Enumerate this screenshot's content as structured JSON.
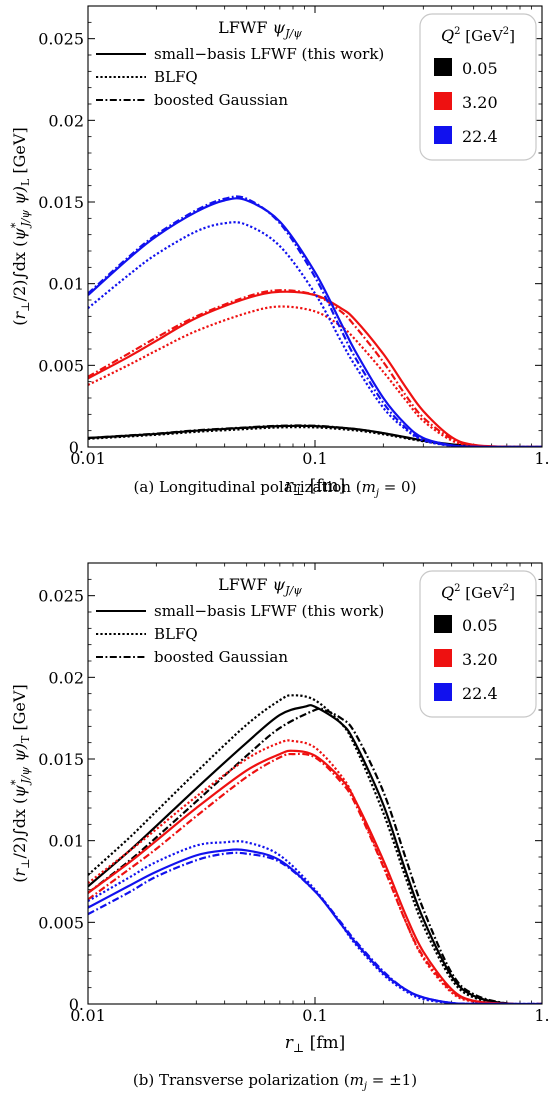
{
  "chart_data": [
    {
      "type": "line",
      "caption": "(a) Longitudinal polarization (m_j = 0)",
      "caption_parts": [
        "(a)  Longitudinal polarization (",
        "m",
        "j",
        " = 0)"
      ],
      "xlabel": "r⊥ [fm]",
      "ylabel": "(r⊥/2)∫dx (ψ*J/ψ ψ)L [GeV]",
      "xscale": "log",
      "xlim": [
        0.01,
        1.0
      ],
      "ylim": [
        0,
        0.027
      ],
      "xticks": [
        0.01,
        0.1,
        1.0
      ],
      "xtick_labels": [
        "0.01",
        "0.1",
        "1."
      ],
      "yticks": [
        0,
        0.005,
        0.01,
        0.015,
        0.02,
        0.025
      ],
      "ytick_labels": [
        "0.",
        "0.005",
        "0.01",
        "0.015",
        "0.02",
        "0.025"
      ],
      "legend_title": "LFWF ψJ/ψ",
      "legend_styles": [
        {
          "label": "small−basis LFWF (this work)",
          "style": "solid"
        },
        {
          "label": "BLFQ",
          "style": "dotted"
        },
        {
          "label": "boosted Gaussian",
          "style": "dashdot"
        }
      ],
      "legend_q2_title": "Q2 [GeV2]",
      "legend_q2": [
        {
          "label": "0.05",
          "color": "#000000"
        },
        {
          "label": "3.20",
          "color": "#ee1111"
        },
        {
          "label": "22.4",
          "color": "#1111ee"
        }
      ],
      "series": [
        {
          "q2": "0.05",
          "style": "solid",
          "color": "#000000",
          "x": [
            0.01,
            0.02,
            0.03,
            0.05,
            0.07,
            0.1,
            0.15,
            0.2,
            0.3,
            0.4,
            0.5,
            0.7,
            1.0
          ],
          "y": [
            0.00055,
            0.0008,
            0.001,
            0.00118,
            0.00128,
            0.00128,
            0.0011,
            0.00085,
            0.0004,
            0.00016,
            6e-05,
            1e-05,
            0
          ]
        },
        {
          "q2": "0.05",
          "style": "dotted",
          "color": "#000000",
          "x": [
            0.01,
            0.02,
            0.03,
            0.05,
            0.07,
            0.1,
            0.15,
            0.2,
            0.3,
            0.4,
            0.5,
            0.7,
            1.0
          ],
          "y": [
            0.0005,
            0.00075,
            0.00093,
            0.0011,
            0.0012,
            0.0012,
            0.00102,
            0.00078,
            0.00035,
            0.00013,
            4e-05,
            1e-05,
            0
          ]
        },
        {
          "q2": "0.05",
          "style": "dashdot",
          "color": "#000000",
          "x": [
            0.01,
            0.02,
            0.03,
            0.05,
            0.07,
            0.1,
            0.15,
            0.2,
            0.3,
            0.4,
            0.5,
            0.7,
            1.0
          ],
          "y": [
            0.00055,
            0.00082,
            0.00102,
            0.0012,
            0.0013,
            0.0013,
            0.0011,
            0.00084,
            0.00038,
            0.00014,
            5e-05,
            1e-05,
            0
          ]
        },
        {
          "q2": "3.20",
          "style": "solid",
          "color": "#ee1111",
          "x": [
            0.01,
            0.015,
            0.02,
            0.03,
            0.05,
            0.07,
            0.1,
            0.13,
            0.15,
            0.2,
            0.25,
            0.3,
            0.4,
            0.5,
            0.7,
            1.0
          ],
          "y": [
            0.0042,
            0.0055,
            0.0065,
            0.0079,
            0.0091,
            0.0095,
            0.0093,
            0.0085,
            0.0078,
            0.0057,
            0.0037,
            0.0022,
            0.0006,
            0.00013,
            1e-05,
            0
          ]
        },
        {
          "q2": "3.20",
          "style": "dotted",
          "color": "#ee1111",
          "x": [
            0.01,
            0.015,
            0.02,
            0.03,
            0.05,
            0.07,
            0.1,
            0.13,
            0.15,
            0.2,
            0.25,
            0.3,
            0.4,
            0.5,
            0.7,
            1.0
          ],
          "y": [
            0.0038,
            0.005,
            0.0059,
            0.0071,
            0.0082,
            0.0086,
            0.0083,
            0.0074,
            0.0066,
            0.0046,
            0.0029,
            0.0016,
            0.0004,
            8e-05,
            1e-05,
            0
          ]
        },
        {
          "q2": "3.20",
          "style": "dashdot",
          "color": "#ee1111",
          "x": [
            0.01,
            0.015,
            0.02,
            0.03,
            0.05,
            0.07,
            0.1,
            0.13,
            0.15,
            0.2,
            0.25,
            0.3,
            0.4,
            0.5,
            0.7,
            1.0
          ],
          "y": [
            0.0043,
            0.0057,
            0.0067,
            0.008,
            0.0092,
            0.0096,
            0.0093,
            0.0083,
            0.0074,
            0.0052,
            0.0032,
            0.0018,
            0.0005,
            0.0001,
            1e-05,
            0
          ]
        },
        {
          "q2": "22.4",
          "style": "solid",
          "color": "#1111ee",
          "x": [
            0.01,
            0.015,
            0.02,
            0.03,
            0.04,
            0.05,
            0.07,
            0.1,
            0.13,
            0.15,
            0.2,
            0.25,
            0.3,
            0.4,
            0.5,
            0.7,
            1.0
          ],
          "y": [
            0.0093,
            0.0115,
            0.0129,
            0.0144,
            0.0151,
            0.0151,
            0.0138,
            0.0107,
            0.0076,
            0.0059,
            0.003,
            0.0014,
            0.00055,
            0.0001,
            2e-05,
            0,
            0
          ]
        },
        {
          "q2": "22.4",
          "style": "dotted",
          "color": "#1111ee",
          "x": [
            0.01,
            0.015,
            0.02,
            0.03,
            0.04,
            0.05,
            0.07,
            0.1,
            0.13,
            0.15,
            0.2,
            0.25,
            0.3,
            0.4,
            0.5,
            0.7,
            1.0
          ],
          "y": [
            0.0085,
            0.0105,
            0.0118,
            0.0132,
            0.0137,
            0.0136,
            0.0123,
            0.0094,
            0.0065,
            0.005,
            0.0024,
            0.0011,
            0.0004,
            7e-05,
            1e-05,
            0,
            0
          ]
        },
        {
          "q2": "22.4",
          "style": "dashdot",
          "color": "#1111ee",
          "x": [
            0.01,
            0.015,
            0.02,
            0.03,
            0.04,
            0.05,
            0.07,
            0.1,
            0.13,
            0.15,
            0.2,
            0.25,
            0.3,
            0.4,
            0.5,
            0.7,
            1.0
          ],
          "y": [
            0.0094,
            0.0116,
            0.013,
            0.0145,
            0.0152,
            0.0152,
            0.0137,
            0.0104,
            0.0072,
            0.0055,
            0.0027,
            0.0012,
            0.00045,
            8e-05,
            1e-05,
            0,
            0
          ]
        }
      ]
    },
    {
      "type": "line",
      "caption": "(b) Transverse polarization (m_j = ±1)",
      "caption_parts": [
        "(b)  Transverse polarization (",
        "m",
        "j",
        " = ±1)"
      ],
      "xlabel": "r⊥ [fm]",
      "ylabel": "(r⊥/2)∫dx (ψ*J/ψ ψ)T [GeV]",
      "xscale": "log",
      "xlim": [
        0.01,
        1.0
      ],
      "ylim": [
        0,
        0.027
      ],
      "xticks": [
        0.01,
        0.1,
        1.0
      ],
      "xtick_labels": [
        "0.01",
        "0.1",
        "1."
      ],
      "yticks": [
        0,
        0.005,
        0.01,
        0.015,
        0.02,
        0.025
      ],
      "ytick_labels": [
        "0.",
        "0.005",
        "0.01",
        "0.015",
        "0.02",
        "0.025"
      ],
      "legend_title": "LFWF ψJ/ψ",
      "legend_styles": [
        {
          "label": "small−basis LFWF (this work)",
          "style": "solid"
        },
        {
          "label": "BLFQ",
          "style": "dotted"
        },
        {
          "label": "boosted Gaussian",
          "style": "dashdot"
        }
      ],
      "legend_q2_title": "Q2 [GeV2]",
      "legend_q2": [
        {
          "label": "0.05",
          "color": "#000000"
        },
        {
          "label": "3.20",
          "color": "#ee1111"
        },
        {
          "label": "22.4",
          "color": "#1111ee"
        }
      ],
      "series": [
        {
          "q2": "0.05",
          "style": "solid",
          "color": "#000000",
          "x": [
            0.01,
            0.015,
            0.02,
            0.03,
            0.05,
            0.07,
            0.09,
            0.1,
            0.13,
            0.15,
            0.2,
            0.25,
            0.3,
            0.4,
            0.5,
            0.7,
            1.0
          ],
          "y": [
            0.0072,
            0.0093,
            0.0109,
            0.0132,
            0.016,
            0.0177,
            0.0182,
            0.0182,
            0.0172,
            0.016,
            0.0122,
            0.0082,
            0.0052,
            0.0017,
            0.0005,
            3e-05,
            0
          ]
        },
        {
          "q2": "0.05",
          "style": "dotted",
          "color": "#000000",
          "x": [
            0.01,
            0.015,
            0.02,
            0.03,
            0.05,
            0.07,
            0.08,
            0.1,
            0.13,
            0.15,
            0.2,
            0.25,
            0.3,
            0.4,
            0.5,
            0.7,
            1.0
          ],
          "y": [
            0.0079,
            0.0101,
            0.0118,
            0.0142,
            0.0171,
            0.0186,
            0.0189,
            0.0186,
            0.0172,
            0.0158,
            0.0117,
            0.0078,
            0.0048,
            0.0015,
            0.0004,
            2e-05,
            0
          ]
        },
        {
          "q2": "0.05",
          "style": "dashdot",
          "color": "#000000",
          "x": [
            0.01,
            0.015,
            0.02,
            0.03,
            0.05,
            0.07,
            0.1,
            0.11,
            0.13,
            0.15,
            0.2,
            0.25,
            0.3,
            0.4,
            0.5,
            0.7,
            1.0
          ],
          "y": [
            0.0068,
            0.0087,
            0.0102,
            0.0124,
            0.0152,
            0.0169,
            0.018,
            0.018,
            0.0175,
            0.0166,
            0.013,
            0.009,
            0.0058,
            0.0019,
            0.0006,
            4e-05,
            0
          ]
        },
        {
          "q2": "3.20",
          "style": "solid",
          "color": "#ee1111",
          "x": [
            0.01,
            0.015,
            0.02,
            0.03,
            0.05,
            0.07,
            0.08,
            0.1,
            0.13,
            0.15,
            0.2,
            0.25,
            0.3,
            0.4,
            0.5,
            0.7,
            1.0
          ],
          "y": [
            0.0068,
            0.0086,
            0.01,
            0.012,
            0.0143,
            0.0153,
            0.0155,
            0.0152,
            0.0138,
            0.0125,
            0.0088,
            0.0055,
            0.0032,
            0.0009,
            0.0002,
            1e-05,
            0
          ]
        },
        {
          "q2": "3.20",
          "style": "dotted",
          "color": "#ee1111",
          "x": [
            0.01,
            0.015,
            0.02,
            0.03,
            0.05,
            0.07,
            0.08,
            0.1,
            0.13,
            0.15,
            0.2,
            0.25,
            0.3,
            0.4,
            0.5,
            0.7,
            1.0
          ],
          "y": [
            0.0074,
            0.0093,
            0.0107,
            0.0127,
            0.015,
            0.016,
            0.0161,
            0.0157,
            0.014,
            0.0125,
            0.0085,
            0.0051,
            0.0028,
            0.0007,
            0.00015,
            1e-05,
            0
          ]
        },
        {
          "q2": "3.20",
          "style": "dashdot",
          "color": "#ee1111",
          "x": [
            0.01,
            0.015,
            0.02,
            0.03,
            0.05,
            0.07,
            0.08,
            0.1,
            0.13,
            0.15,
            0.2,
            0.25,
            0.3,
            0.4,
            0.5,
            0.7,
            1.0
          ],
          "y": [
            0.0064,
            0.0082,
            0.0095,
            0.0115,
            0.0139,
            0.0151,
            0.0153,
            0.0151,
            0.0136,
            0.0123,
            0.0084,
            0.0051,
            0.0029,
            0.0008,
            0.00018,
            1e-05,
            0
          ]
        },
        {
          "q2": "22.4",
          "style": "solid",
          "color": "#1111ee",
          "x": [
            0.01,
            0.015,
            0.02,
            0.03,
            0.04,
            0.05,
            0.07,
            0.1,
            0.13,
            0.15,
            0.2,
            0.25,
            0.3,
            0.4,
            0.5,
            0.7,
            1.0
          ],
          "y": [
            0.0059,
            0.0072,
            0.0081,
            0.0091,
            0.0094,
            0.0094,
            0.0088,
            0.0069,
            0.0049,
            0.0038,
            0.0019,
            0.0009,
            0.0004,
            6e-05,
            1e-05,
            0,
            0
          ]
        },
        {
          "q2": "22.4",
          "style": "dotted",
          "color": "#1111ee",
          "x": [
            0.01,
            0.015,
            0.02,
            0.03,
            0.04,
            0.05,
            0.07,
            0.1,
            0.13,
            0.15,
            0.2,
            0.25,
            0.3,
            0.4,
            0.5,
            0.7,
            1.0
          ],
          "y": [
            0.0063,
            0.0077,
            0.0087,
            0.0097,
            0.0099,
            0.0099,
            0.0091,
            0.007,
            0.0049,
            0.0037,
            0.0018,
            0.0008,
            0.0003,
            5e-05,
            1e-05,
            0,
            0
          ]
        },
        {
          "q2": "22.4",
          "style": "dashdot",
          "color": "#1111ee",
          "x": [
            0.01,
            0.015,
            0.02,
            0.03,
            0.04,
            0.05,
            0.07,
            0.1,
            0.13,
            0.15,
            0.2,
            0.25,
            0.3,
            0.4,
            0.5,
            0.7,
            1.0
          ],
          "y": [
            0.0055,
            0.0068,
            0.0078,
            0.0088,
            0.0092,
            0.0092,
            0.0087,
            0.0069,
            0.005,
            0.0039,
            0.002,
            0.0009,
            0.0004,
            6e-05,
            1e-05,
            0,
            0
          ]
        }
      ]
    }
  ]
}
